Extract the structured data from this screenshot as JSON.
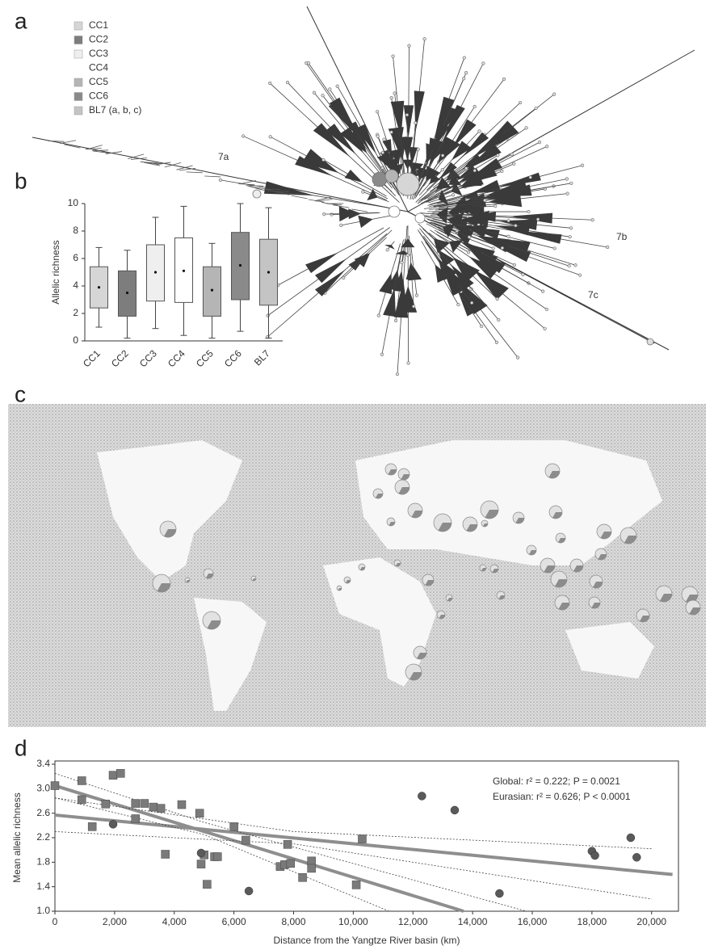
{
  "panel_a": {
    "letter": "a",
    "legend": [
      {
        "label": "CC1",
        "color": "#d6d6d6"
      },
      {
        "label": "CC2",
        "color": "#7d7d7d"
      },
      {
        "label": "CC3",
        "color": "#efefef"
      },
      {
        "label": "CC4",
        "color": "#ffffff"
      },
      {
        "label": "CC5",
        "color": "#b5b5b5"
      },
      {
        "label": "CC6",
        "color": "#8a8a8a"
      },
      {
        "label": "BL7 (a, b, c)",
        "color": "#c4c4c4"
      }
    ],
    "labels": [
      "7a",
      "7b",
      "7c"
    ]
  },
  "panel_c": {
    "letter": "c"
  },
  "chart_data": [
    {
      "type": "box",
      "panel": "b",
      "ylabel": "Allelic richness",
      "categories": [
        "CC1",
        "CC2",
        "CC3",
        "CC4",
        "CC5",
        "CC6",
        "BL7"
      ],
      "colors": [
        "#d6d6d6",
        "#7d7d7d",
        "#efefef",
        "#ffffff",
        "#b5b5b5",
        "#8a8a8a",
        "#c4c4c4"
      ],
      "min": [
        1.0,
        0.2,
        0.9,
        0.4,
        0.2,
        0.7,
        0.2
      ],
      "q1": [
        2.4,
        1.8,
        2.9,
        2.8,
        1.8,
        3.0,
        2.6
      ],
      "q3": [
        5.4,
        5.1,
        7.0,
        7.5,
        5.4,
        7.9,
        7.4
      ],
      "max": [
        6.8,
        6.6,
        9.0,
        9.8,
        7.1,
        10.0,
        9.7
      ],
      "mean": [
        3.9,
        3.5,
        5.0,
        5.1,
        3.7,
        5.5,
        5.0
      ],
      "ylim": [
        0,
        10
      ],
      "yticks": [
        0,
        2,
        4,
        6,
        8,
        10
      ]
    },
    {
      "type": "scatter",
      "panel": "d",
      "xlabel": "Distance from the Yangtze River basin (km)",
      "ylabel": "Mean allelic richness",
      "annotations": [
        "Global:  r² = 0.222;  P = 0.0021",
        "Eurasian:  r² = 0.626;  P < 0.0001"
      ],
      "xlim": [
        0,
        20900
      ],
      "ylim": [
        1.0,
        3.4
      ],
      "xticks": [
        0,
        {
          "value": 2000,
          "label": "2,000"
        },
        {
          "value": 4000,
          "label": "4,000"
        },
        {
          "value": 6000,
          "label": "6,000"
        },
        {
          "value": 8000,
          "label": "8,000"
        },
        {
          "value": 10000,
          "label": "10,000"
        },
        {
          "value": 12000,
          "label": "12,000"
        },
        {
          "value": 14000,
          "label": "14,000"
        },
        {
          "value": 16000,
          "label": "16,000"
        },
        {
          "value": 18000,
          "label": "18,000"
        },
        {
          "value": 20000,
          "label": "20,000"
        }
      ],
      "yticks": [
        {
          "value": 1.0,
          "label": "1.0"
        },
        1.4,
        1.8,
        2.2,
        2.6,
        {
          "value": 3.0,
          "label": "3.0"
        },
        3.4
      ],
      "series": [
        {
          "marker": "square",
          "color": "#7a7a7a",
          "x": [
            0,
            900,
            900,
            1250,
            1700,
            1950,
            2200,
            2700,
            2700,
            3000,
            3300,
            3550,
            3700,
            4250,
            4850,
            4900,
            5000,
            5100,
            5350,
            5450,
            6000,
            6400,
            7550,
            7700,
            7800,
            7900,
            8300,
            8600,
            8600,
            10100,
            10300
          ],
          "values": [
            3.05,
            3.13,
            2.82,
            2.38,
            2.75,
            3.22,
            3.25,
            2.76,
            2.51,
            2.76,
            2.7,
            2.68,
            1.93,
            2.74,
            2.6,
            1.77,
            1.92,
            1.44,
            1.89,
            1.89,
            2.38,
            2.16,
            1.73,
            1.76,
            2.09,
            1.78,
            1.55,
            1.82,
            1.7,
            1.43,
            2.18
          ]
        },
        {
          "marker": "circle",
          "color": "#5a5a5a",
          "x": [
            1950,
            4900,
            6500,
            12300,
            13400,
            14900,
            18000,
            18100,
            19300,
            19500
          ],
          "values": [
            2.42,
            1.95,
            1.33,
            2.88,
            2.65,
            1.29,
            1.98,
            1.91,
            2.2,
            1.88
          ]
        }
      ],
      "lines": [
        {
          "style": "solid",
          "x": [
            0,
            20700
          ],
          "y": [
            2.57,
            1.6
          ]
        },
        {
          "style": "solid",
          "x": [
            0,
            13700
          ],
          "y": [
            3.05,
            1.0
          ]
        },
        {
          "style": "dashed",
          "x": [
            0,
            8000,
            20000
          ],
          "y": [
            2.85,
            2.3,
            2.02
          ]
        },
        {
          "style": "dashed",
          "x": [
            0,
            8000,
            20000
          ],
          "y": [
            2.3,
            2.1,
            1.2
          ]
        },
        {
          "style": "dashed",
          "x": [
            0,
            5000,
            15800
          ],
          "y": [
            3.25,
            2.45,
            1.0
          ]
        },
        {
          "style": "dashed",
          "x": [
            0,
            5000,
            11200
          ],
          "y": [
            2.85,
            2.25,
            1.0
          ]
        }
      ]
    }
  ]
}
